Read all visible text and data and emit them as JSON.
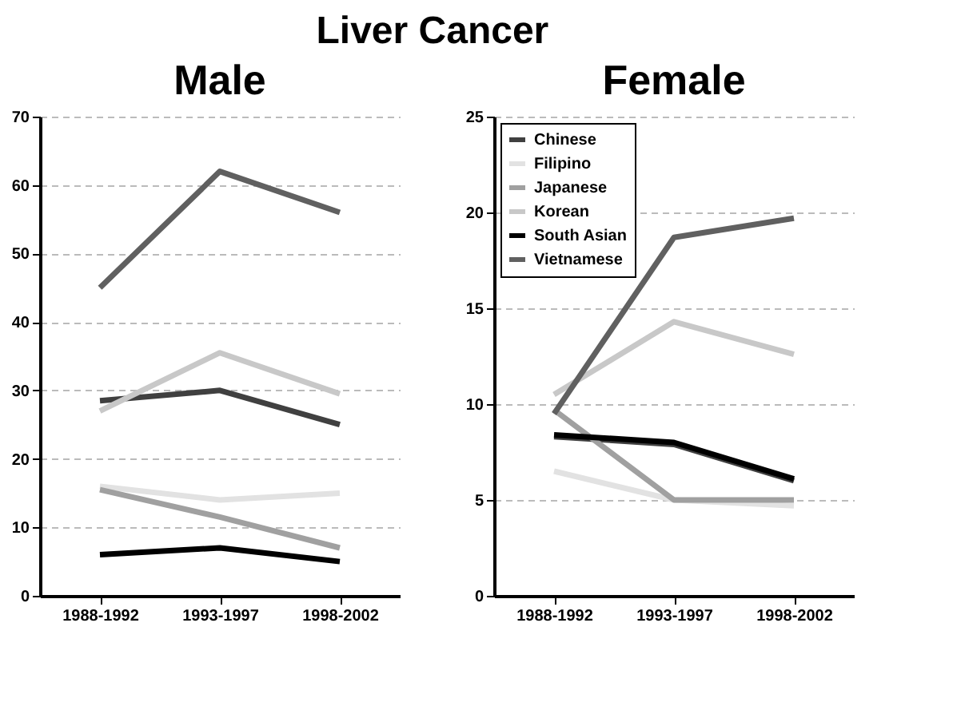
{
  "chart_data": [
    {
      "type": "line",
      "title": "Liver Cancer",
      "subtitle": "Male",
      "categories": [
        "1988-1992",
        "1993-1997",
        "1998-2002"
      ],
      "series": [
        {
          "color": "#404040",
          "values": [
            28.5,
            30,
            25
          ]
        },
        {
          "color": "#e2e2e2",
          "values": [
            16,
            14,
            15
          ]
        },
        {
          "color": "#a0a0a0",
          "values": [
            15.5,
            11.5,
            7
          ]
        },
        {
          "color": "#c8c8c8",
          "values": [
            27,
            35.5,
            29.5
          ]
        },
        {
          "color": "#000000",
          "values": [
            6,
            7,
            5
          ]
        },
        {
          "color": "#606060",
          "values": [
            45,
            62,
            56
          ]
        }
      ],
      "ylim": [
        0,
        70
      ],
      "yticks": [
        0,
        10,
        20,
        30,
        40,
        50,
        60,
        70
      ],
      "grid": "y",
      "legend": false
    },
    {
      "type": "line",
      "subtitle": "Female",
      "categories": [
        "1988-1992",
        "1993-1997",
        "1998-2002"
      ],
      "series": [
        {
          "name": "Chinese",
          "color": "#404040",
          "values": [
            8.3,
            7.9,
            6
          ]
        },
        {
          "name": "Filipino",
          "color": "#e2e2e2",
          "values": [
            6.5,
            5,
            4.7
          ]
        },
        {
          "name": "Japanese",
          "color": "#a0a0a0",
          "values": [
            9.7,
            5,
            5
          ]
        },
        {
          "name": "Korean",
          "color": "#c8c8c8",
          "values": [
            10.5,
            14.3,
            12.6
          ]
        },
        {
          "name": "South Asian",
          "color": "#000000",
          "values": [
            8.4,
            8,
            6.1
          ]
        },
        {
          "name": "Vietnamese",
          "color": "#606060",
          "values": [
            9.5,
            18.7,
            19.7
          ]
        }
      ],
      "ylim": [
        0,
        25
      ],
      "yticks": [
        0,
        5,
        10,
        15,
        20,
        25
      ],
      "grid": "y",
      "legend": "top left"
    }
  ]
}
